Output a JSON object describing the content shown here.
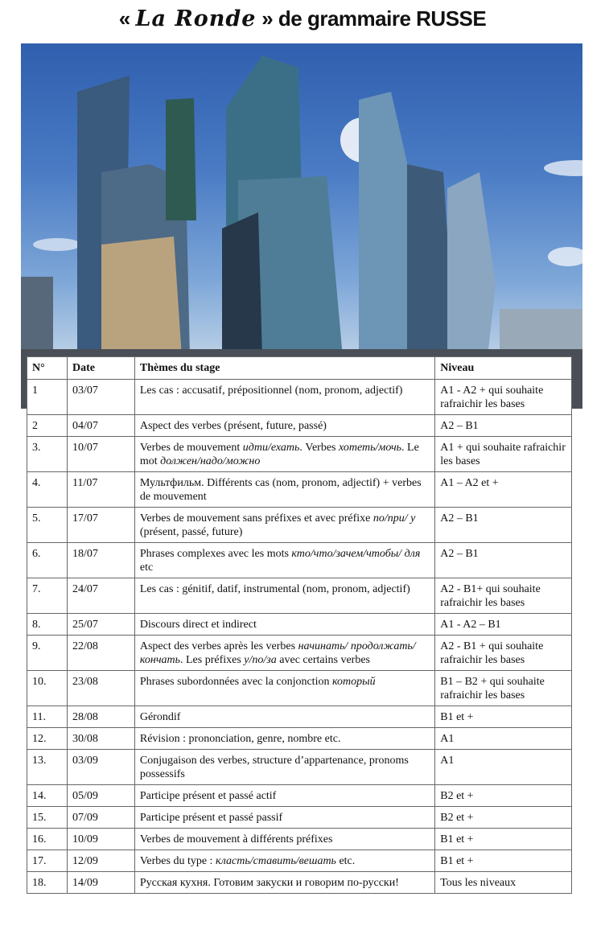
{
  "title": {
    "open": "«",
    "logo": "La Ronde",
    "close": "»",
    "rest": "de grammaire RUSSE"
  },
  "table": {
    "headers": [
      "N°",
      "Date",
      "Thèmes du stage",
      "Niveau"
    ],
    "rows": [
      {
        "n": "1",
        "date": "03/07",
        "theme": [
          {
            "t": "Les cas : accusatif, prépositionnel (nom, pronom, adjectif)"
          }
        ],
        "level": "A1 - A2 + qui souhaite rafraichir les bases"
      },
      {
        "n": "2",
        "date": "04/07",
        "theme": [
          {
            "t": "Aspect des verbes (présent, future, passé)"
          }
        ],
        "level": "A2 – B1"
      },
      {
        "n": "3.",
        "date": "10/07",
        "theme": [
          {
            "t": "Verbes de mouvement "
          },
          {
            "t": "идти/ехать",
            "i": true
          },
          {
            "t": ". Verbes "
          },
          {
            "t": "хотеть/мочь",
            "i": true
          },
          {
            "t": ". Le mot "
          },
          {
            "t": "должен/надо/можно",
            "i": true
          }
        ],
        "level": "A1 + qui souhaite rafraichir les bases"
      },
      {
        "n": "4.",
        "date": "11/07",
        "theme": [
          {
            "t": "Мультфильм. Différents cas (nom, pronom, adjectif) + verbes de mouvement"
          }
        ],
        "level": "A1 – A2 et +"
      },
      {
        "n": "5.",
        "date": "17/07",
        "theme": [
          {
            "t": "Verbes de mouvement sans préfixes et avec préfixe "
          },
          {
            "t": "по/при/ у",
            "i": true
          },
          {
            "t": " (présent, passé, future)"
          }
        ],
        "level": "A2 – B1"
      },
      {
        "n": "6.",
        "date": "18/07",
        "theme": [
          {
            "t": "Phrases complexes avec les mots "
          },
          {
            "t": "кто/что/зачем/чтобы/ для",
            "i": true
          },
          {
            "t": " etc"
          }
        ],
        "level": "A2 – B1"
      },
      {
        "n": "7.",
        "date": "24/07",
        "theme": [
          {
            "t": "Les cas : génitif,  datif, instrumental  (nom, pronom, adjectif)"
          }
        ],
        "level": "A2 - B1+ qui souhaite rafraichir les bases"
      },
      {
        "n": "8.",
        "date": "25/07",
        "theme": [
          {
            "t": "Discours direct et indirect"
          }
        ],
        "level": "A1 - A2 – B1"
      },
      {
        "n": "9.",
        "date": "22/08",
        "theme": [
          {
            "t": "Aspect des verbes après les verbes "
          },
          {
            "t": "начинать/ продолжать/кончать",
            "i": true
          },
          {
            "t": ". Les préfixes "
          },
          {
            "t": "у/по/за",
            "i": true
          },
          {
            "t": " avec certains verbes"
          }
        ],
        "level": "A2 - B1 + qui souhaite rafraichir les bases"
      },
      {
        "n": "10.",
        "date": "23/08",
        "theme": [
          {
            "t": "Phrases subordonnées avec la conjonction "
          },
          {
            "t": "который",
            "i": true
          }
        ],
        "level": "B1 – B2 + qui souhaite rafraichir les bases"
      },
      {
        "n": "11.",
        "date": "28/08",
        "theme": [
          {
            "t": "Gérondif"
          }
        ],
        "level": "B1 et +"
      },
      {
        "n": "12.",
        "date": "30/08",
        "theme": [
          {
            "t": "Révision : prononciation, genre, nombre etc."
          }
        ],
        "level": "A1"
      },
      {
        "n": "13.",
        "date": "03/09",
        "theme": [
          {
            "t": "Conjugaison des verbes, structure d’appartenance,  pronoms possessifs"
          }
        ],
        "level": "A1"
      },
      {
        "n": "14.",
        "date": "05/09",
        "theme": [
          {
            "t": "Participe présent et passé actif"
          }
        ],
        "level": "B2 et +"
      },
      {
        "n": "15.",
        "date": "07/09",
        "theme": [
          {
            "t": "Participe présent et passé passif"
          }
        ],
        "level": "B2 et +"
      },
      {
        "n": "16.",
        "date": "10/09",
        "theme": [
          {
            "t": "Verbes de mouvement à différents préfixes"
          }
        ],
        "level": "B1 et +"
      },
      {
        "n": "17.",
        "date": "12/09",
        "theme": [
          {
            "t": "Verbes du type : "
          },
          {
            "t": "класть/ставить/вешать",
            "i": true
          },
          {
            "t": " etc."
          }
        ],
        "level": "B1 et +"
      },
      {
        "n": "18.",
        "date": "14/09",
        "theme": [
          {
            "t": "Русская кухня. Готовим закуски и говорим по-русски!"
          }
        ],
        "level": "Tous les niveaux"
      }
    ]
  }
}
